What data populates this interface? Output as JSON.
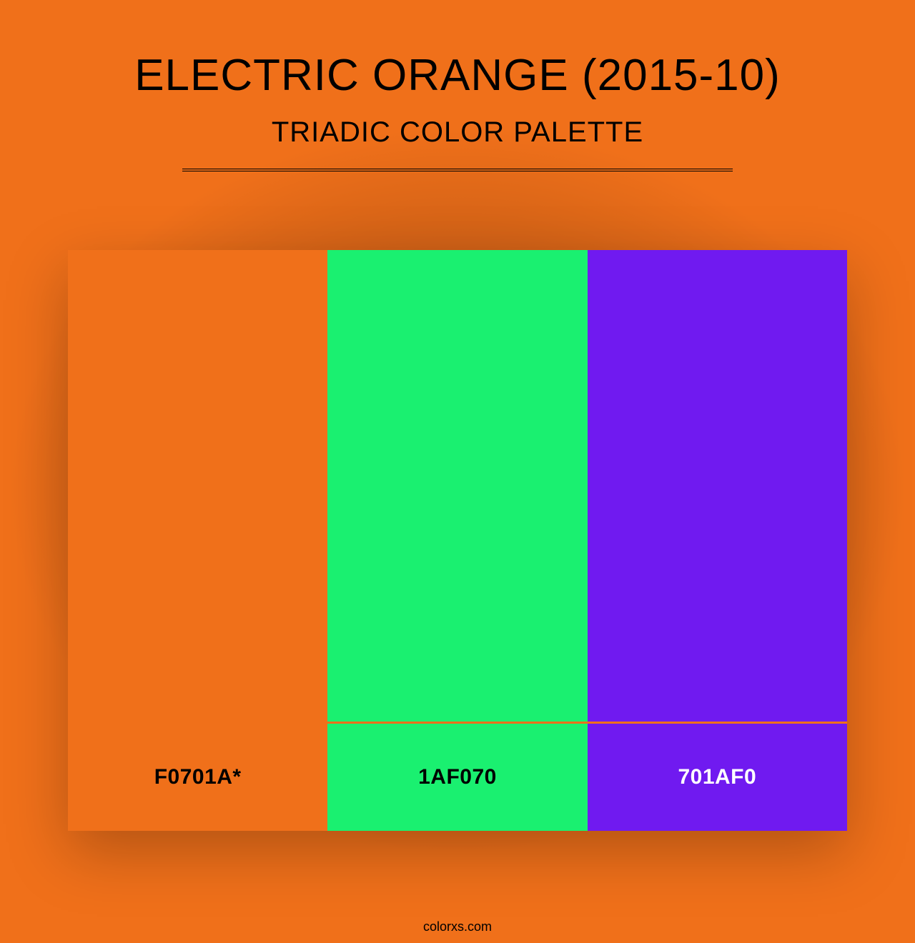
{
  "background_color": "#f0701a",
  "header": {
    "title": "ELECTRIC ORANGE (2015-10)",
    "subtitle": "TRIADIC COLOR PALETTE",
    "title_color": "#000000",
    "subtitle_color": "#000000",
    "divider_color": "#000000"
  },
  "palette": {
    "type": "color-swatches",
    "swatch_height": 660,
    "label_height": 150,
    "gap_color": "#f0701a",
    "colors": [
      {
        "hex": "#f0701a",
        "label": "F0701A*",
        "label_color": "#000000"
      },
      {
        "hex": "#1af070",
        "label": "1AF070",
        "label_color": "#000000"
      },
      {
        "hex": "#701af0",
        "label": "701AF0",
        "label_color": "#ffffff"
      }
    ]
  },
  "footer": {
    "text": "colorxs.com",
    "color": "#000000"
  }
}
